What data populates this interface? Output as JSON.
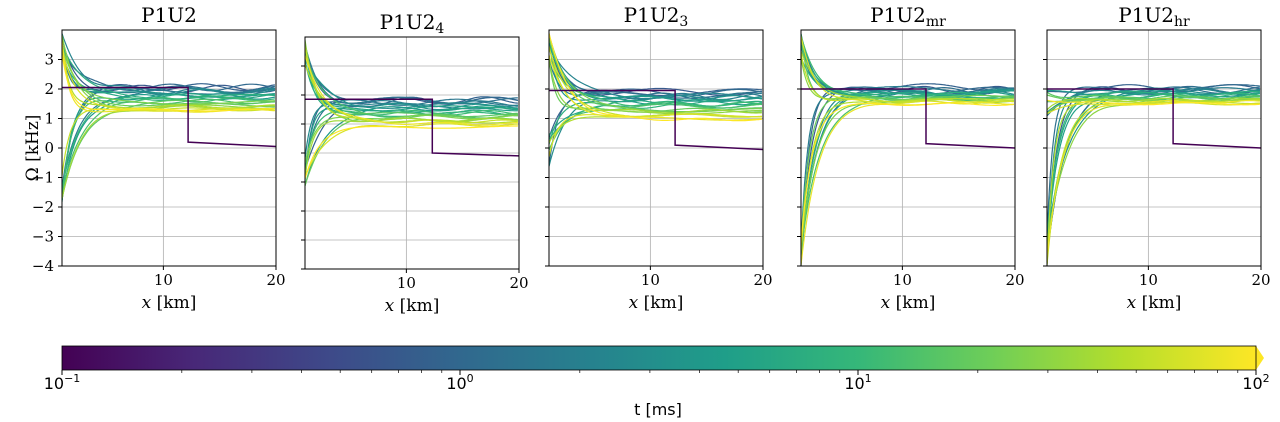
{
  "chart_data": {
    "type": "line",
    "ylabel": "Ω [kHz]",
    "xlabel_var": "x",
    "xlabel_unit": "[km]",
    "x_range": [
      1,
      20
    ],
    "y_range": [
      -4,
      4
    ],
    "x_ticks": [
      10,
      20
    ],
    "y_ticks": [
      -4,
      -3,
      -2,
      -1,
      0,
      1,
      2,
      3
    ],
    "grid": true,
    "panels": [
      {
        "title_base": "P1U2",
        "title_sub": "",
        "initial_profile": [
          [
            1,
            2.05
          ],
          [
            12.2,
            2.05
          ],
          [
            12.2,
            0.2
          ],
          [
            20,
            0.05
          ]
        ],
        "early_min": -2.0,
        "early_max": 3.9,
        "plateau_top": 2.1,
        "plateau_bottom": 1.25
      },
      {
        "title_base": "P1U2",
        "title_sub": "4",
        "initial_profile": [
          [
            1,
            1.85
          ],
          [
            12.3,
            1.85
          ],
          [
            12.3,
            0.0
          ],
          [
            20,
            -0.1
          ]
        ],
        "early_min": -1.3,
        "early_max": 3.9,
        "plateau_top": 1.9,
        "plateau_bottom": 0.95
      },
      {
        "title_base": "P1U2",
        "title_sub": "3",
        "initial_profile": [
          [
            1,
            1.95
          ],
          [
            12.2,
            1.95
          ],
          [
            12.2,
            0.1
          ],
          [
            20,
            -0.05
          ]
        ],
        "early_min": -0.6,
        "early_max": 3.9,
        "plateau_top": 2.0,
        "plateau_bottom": 1.0
      },
      {
        "title_base": "P1U2",
        "title_sub": "mr",
        "initial_profile": [
          [
            1,
            2.0
          ],
          [
            12.1,
            2.0
          ],
          [
            12.1,
            0.15
          ],
          [
            20,
            0.0
          ]
        ],
        "early_min": -4.0,
        "early_max": 3.9,
        "plateau_top": 2.05,
        "plateau_bottom": 1.5
      },
      {
        "title_base": "P1U2",
        "title_sub": "hr",
        "initial_profile": [
          [
            1,
            2.0
          ],
          [
            12.2,
            2.0
          ],
          [
            12.2,
            0.15
          ],
          [
            20,
            0.0
          ]
        ],
        "early_min": -4.0,
        "early_max": 2.0,
        "plateau_top": 2.05,
        "plateau_bottom": 1.5
      }
    ],
    "colorbar": {
      "scale": "log",
      "range": [
        0.1,
        100
      ],
      "tick_base": "10",
      "tick_exponents": [
        "−1",
        "0",
        "1",
        "2"
      ],
      "label": "t [ms]",
      "colors": [
        "#440154",
        "#482878",
        "#3e4989",
        "#31688e",
        "#26828e",
        "#1f9e89",
        "#35b779",
        "#6ece58",
        "#b5de2b",
        "#fde725"
      ]
    }
  }
}
